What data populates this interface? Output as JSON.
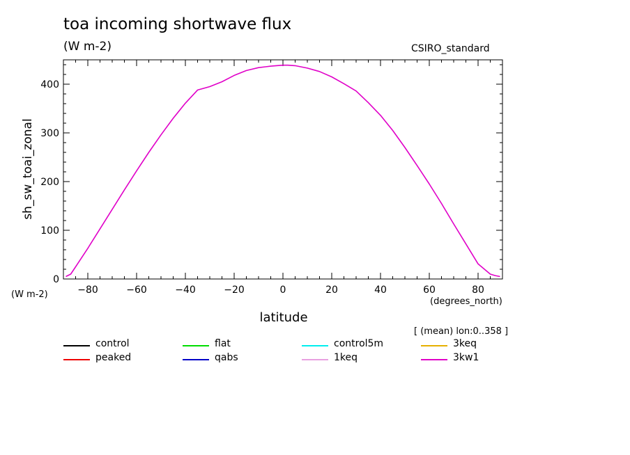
{
  "header": {
    "title": "toa incoming shortwave flux",
    "units": "(W m-2)",
    "dataset": "CSIRO_standard"
  },
  "axes": {
    "ylabel": "sh_sw_toai_zonal",
    "yunits": "(W m-2)",
    "xlabel": "latitude",
    "xunits": "(degrees_north)"
  },
  "note": "[ (mean) lon:0..358 ]",
  "legend": [
    {
      "label": "control",
      "color": "#000000"
    },
    {
      "label": "flat",
      "color": "#00dd00"
    },
    {
      "label": "control5m",
      "color": "#00eeee"
    },
    {
      "label": "3keq",
      "color": "#e6b000"
    },
    {
      "label": "peaked",
      "color": "#ee0000"
    },
    {
      "label": "qabs",
      "color": "#0000c8"
    },
    {
      "label": "1keq",
      "color": "#e8a0e0"
    },
    {
      "label": "3kw1",
      "color": "#e000c8"
    }
  ],
  "chart_data": {
    "type": "line",
    "title": "toa incoming shortwave flux",
    "xlabel": "latitude",
    "ylabel": "sh_sw_toai_zonal",
    "xlim": [
      -90,
      90
    ],
    "ylim": [
      0,
      450
    ],
    "xticks": [
      -80,
      -60,
      -40,
      -20,
      0,
      20,
      40,
      60,
      80
    ],
    "yticks": [
      0,
      100,
      200,
      300,
      400
    ],
    "grid": false,
    "legend_position": "bottom",
    "x": [
      -89,
      -87,
      -85,
      -80,
      -75,
      -70,
      -65,
      -60,
      -55,
      -50,
      -45,
      -40,
      -35,
      -30,
      -25,
      -20,
      -15,
      -10,
      -5,
      0,
      2,
      5,
      10,
      15,
      20,
      25,
      30,
      35,
      40,
      45,
      50,
      55,
      60,
      65,
      70,
      75,
      80,
      85,
      87,
      89
    ],
    "series": [
      {
        "name": "3kw1",
        "color": "#e000c8",
        "values": [
          5,
          10,
          25,
          63,
          103,
          143,
          183,
          222,
          260,
          296,
          330,
          361,
          388,
          395,
          405,
          418,
          428,
          434,
          437,
          439,
          439,
          438,
          433,
          426,
          415,
          401,
          386,
          362,
          336,
          305,
          270,
          233,
          195,
          155,
          113,
          72,
          31,
          10,
          7,
          5
        ]
      }
    ]
  }
}
